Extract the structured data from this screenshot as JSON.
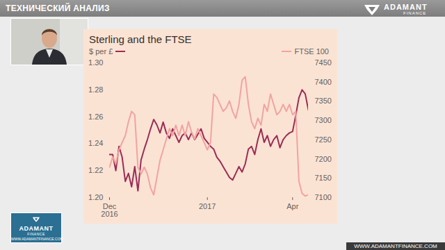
{
  "slide": {
    "header": "ТЕХНИЧЕСКИЙ АНАЛИЗ",
    "logo": "ADAMANT",
    "logo_sub": "FINANCE",
    "badge": "ADAMANT",
    "badge_sub": "FINANCE",
    "badge_url": "WWW.ADAMANTFINANCE.COM",
    "footer": "WWW.ADAMANTFINANCE.COM"
  },
  "chart_data": {
    "type": "line",
    "title": "Sterling and the FTSE",
    "categories": [
      "Dec\n2016",
      null,
      null,
      null,
      null,
      null,
      null,
      null,
      null,
      null,
      null,
      null,
      null,
      null,
      null,
      null,
      null,
      null,
      null,
      null,
      null,
      null,
      null,
      null,
      null,
      null,
      null,
      null,
      null,
      null,
      null,
      "2017",
      null,
      null,
      null,
      null,
      null,
      null,
      null,
      null,
      null,
      null,
      null,
      null,
      null,
      null,
      null,
      null,
      null,
      null,
      null,
      null,
      null,
      null,
      null,
      null,
      null,
      null,
      "Apr",
      null,
      null,
      null,
      null,
      null
    ],
    "series": [
      {
        "name": "$ per £",
        "color": "#9b2c55",
        "values": [
          1.232,
          1.232,
          1.22,
          1.238,
          1.23,
          1.212,
          1.218,
          1.208,
          1.223,
          1.205,
          1.228,
          1.236,
          1.243,
          1.251,
          1.258,
          1.254,
          1.248,
          1.256,
          1.248,
          1.244,
          1.251,
          1.246,
          1.241,
          1.246,
          1.248,
          1.243,
          1.248,
          1.243,
          1.247,
          1.251,
          1.244,
          1.241,
          1.238,
          1.236,
          1.23,
          1.227,
          1.223,
          1.219,
          1.215,
          1.213,
          1.218,
          1.223,
          1.219,
          1.225,
          1.236,
          1.238,
          1.232,
          1.243,
          1.251,
          1.241,
          1.246,
          1.238,
          1.243,
          1.246,
          1.237,
          1.243,
          1.246,
          1.248,
          1.249,
          1.261,
          1.274,
          1.28,
          1.277,
          1.265
        ]
      },
      {
        "name": "FTSE 100",
        "color": "#f2a3a0",
        "axis": "y2",
        "values": [
          7179,
          7206,
          7188,
          7224,
          7243,
          7261,
          7297,
          7324,
          7315,
          7179,
          7161,
          7179,
          7161,
          7125,
          7107,
          7152,
          7197,
          7224,
          7252,
          7279,
          7261,
          7288,
          7261,
          7288,
          7261,
          7297,
          7270,
          7252,
          7279,
          7261,
          7243,
          7224,
          7243,
          7369,
          7360,
          7342,
          7324,
          7333,
          7351,
          7324,
          7306,
          7342,
          7405,
          7414,
          7342,
          7297,
          7279,
          7306,
          7288,
          7342,
          7324,
          7369,
          7342,
          7315,
          7324,
          7342,
          7324,
          7342,
          7315,
          7324,
          7143,
          7111,
          7104,
          7107
        ]
      }
    ],
    "ylim": [
      1.2,
      1.3
    ],
    "yticks": [
      {
        "value": 1.2,
        "label": "1.20"
      },
      1.22,
      1.24,
      1.26,
      1.28,
      {
        "value": 1.3,
        "label": "1.30"
      }
    ],
    "y2lim": [
      7100,
      7450
    ],
    "y2ticks": [
      7100,
      7150,
      7200,
      7250,
      7300,
      7350,
      7400,
      7450
    ],
    "legend": "top",
    "grid": false
  }
}
